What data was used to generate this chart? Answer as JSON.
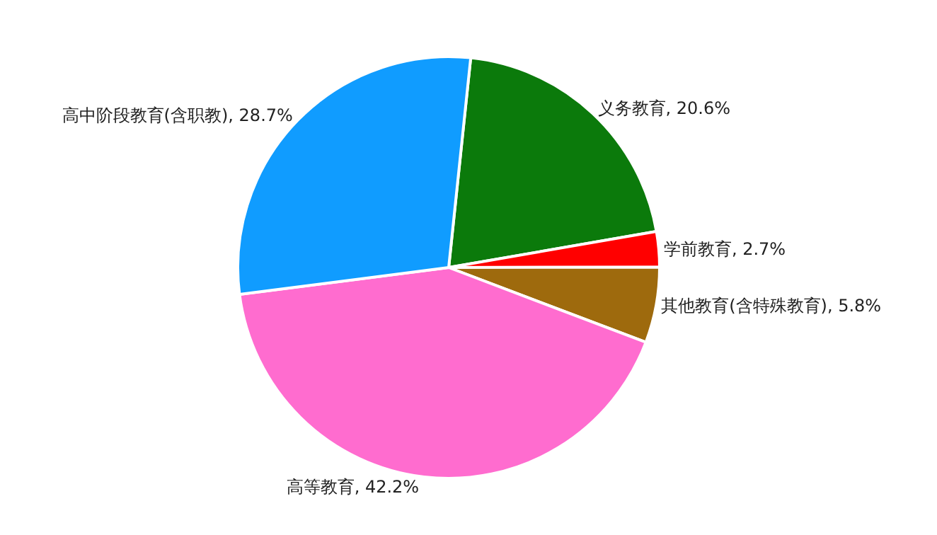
{
  "chart_data": {
    "type": "pie",
    "categories": [
      "义务教育",
      "学前教育",
      "其他教育(含特殊教育)",
      "高等教育",
      "高中阶段教育(含职教)"
    ],
    "values": [
      20.6,
      2.7,
      5.8,
      42.2,
      28.7
    ],
    "colors": [
      "#0b7a0b",
      "#ff0000",
      "#9e6a0d",
      "#ff6ccf",
      "#109cff"
    ],
    "value_labels": [
      "20.6%",
      "2.7%",
      "5.8%",
      "42.2%",
      "28.7%"
    ],
    "legend": false
  }
}
